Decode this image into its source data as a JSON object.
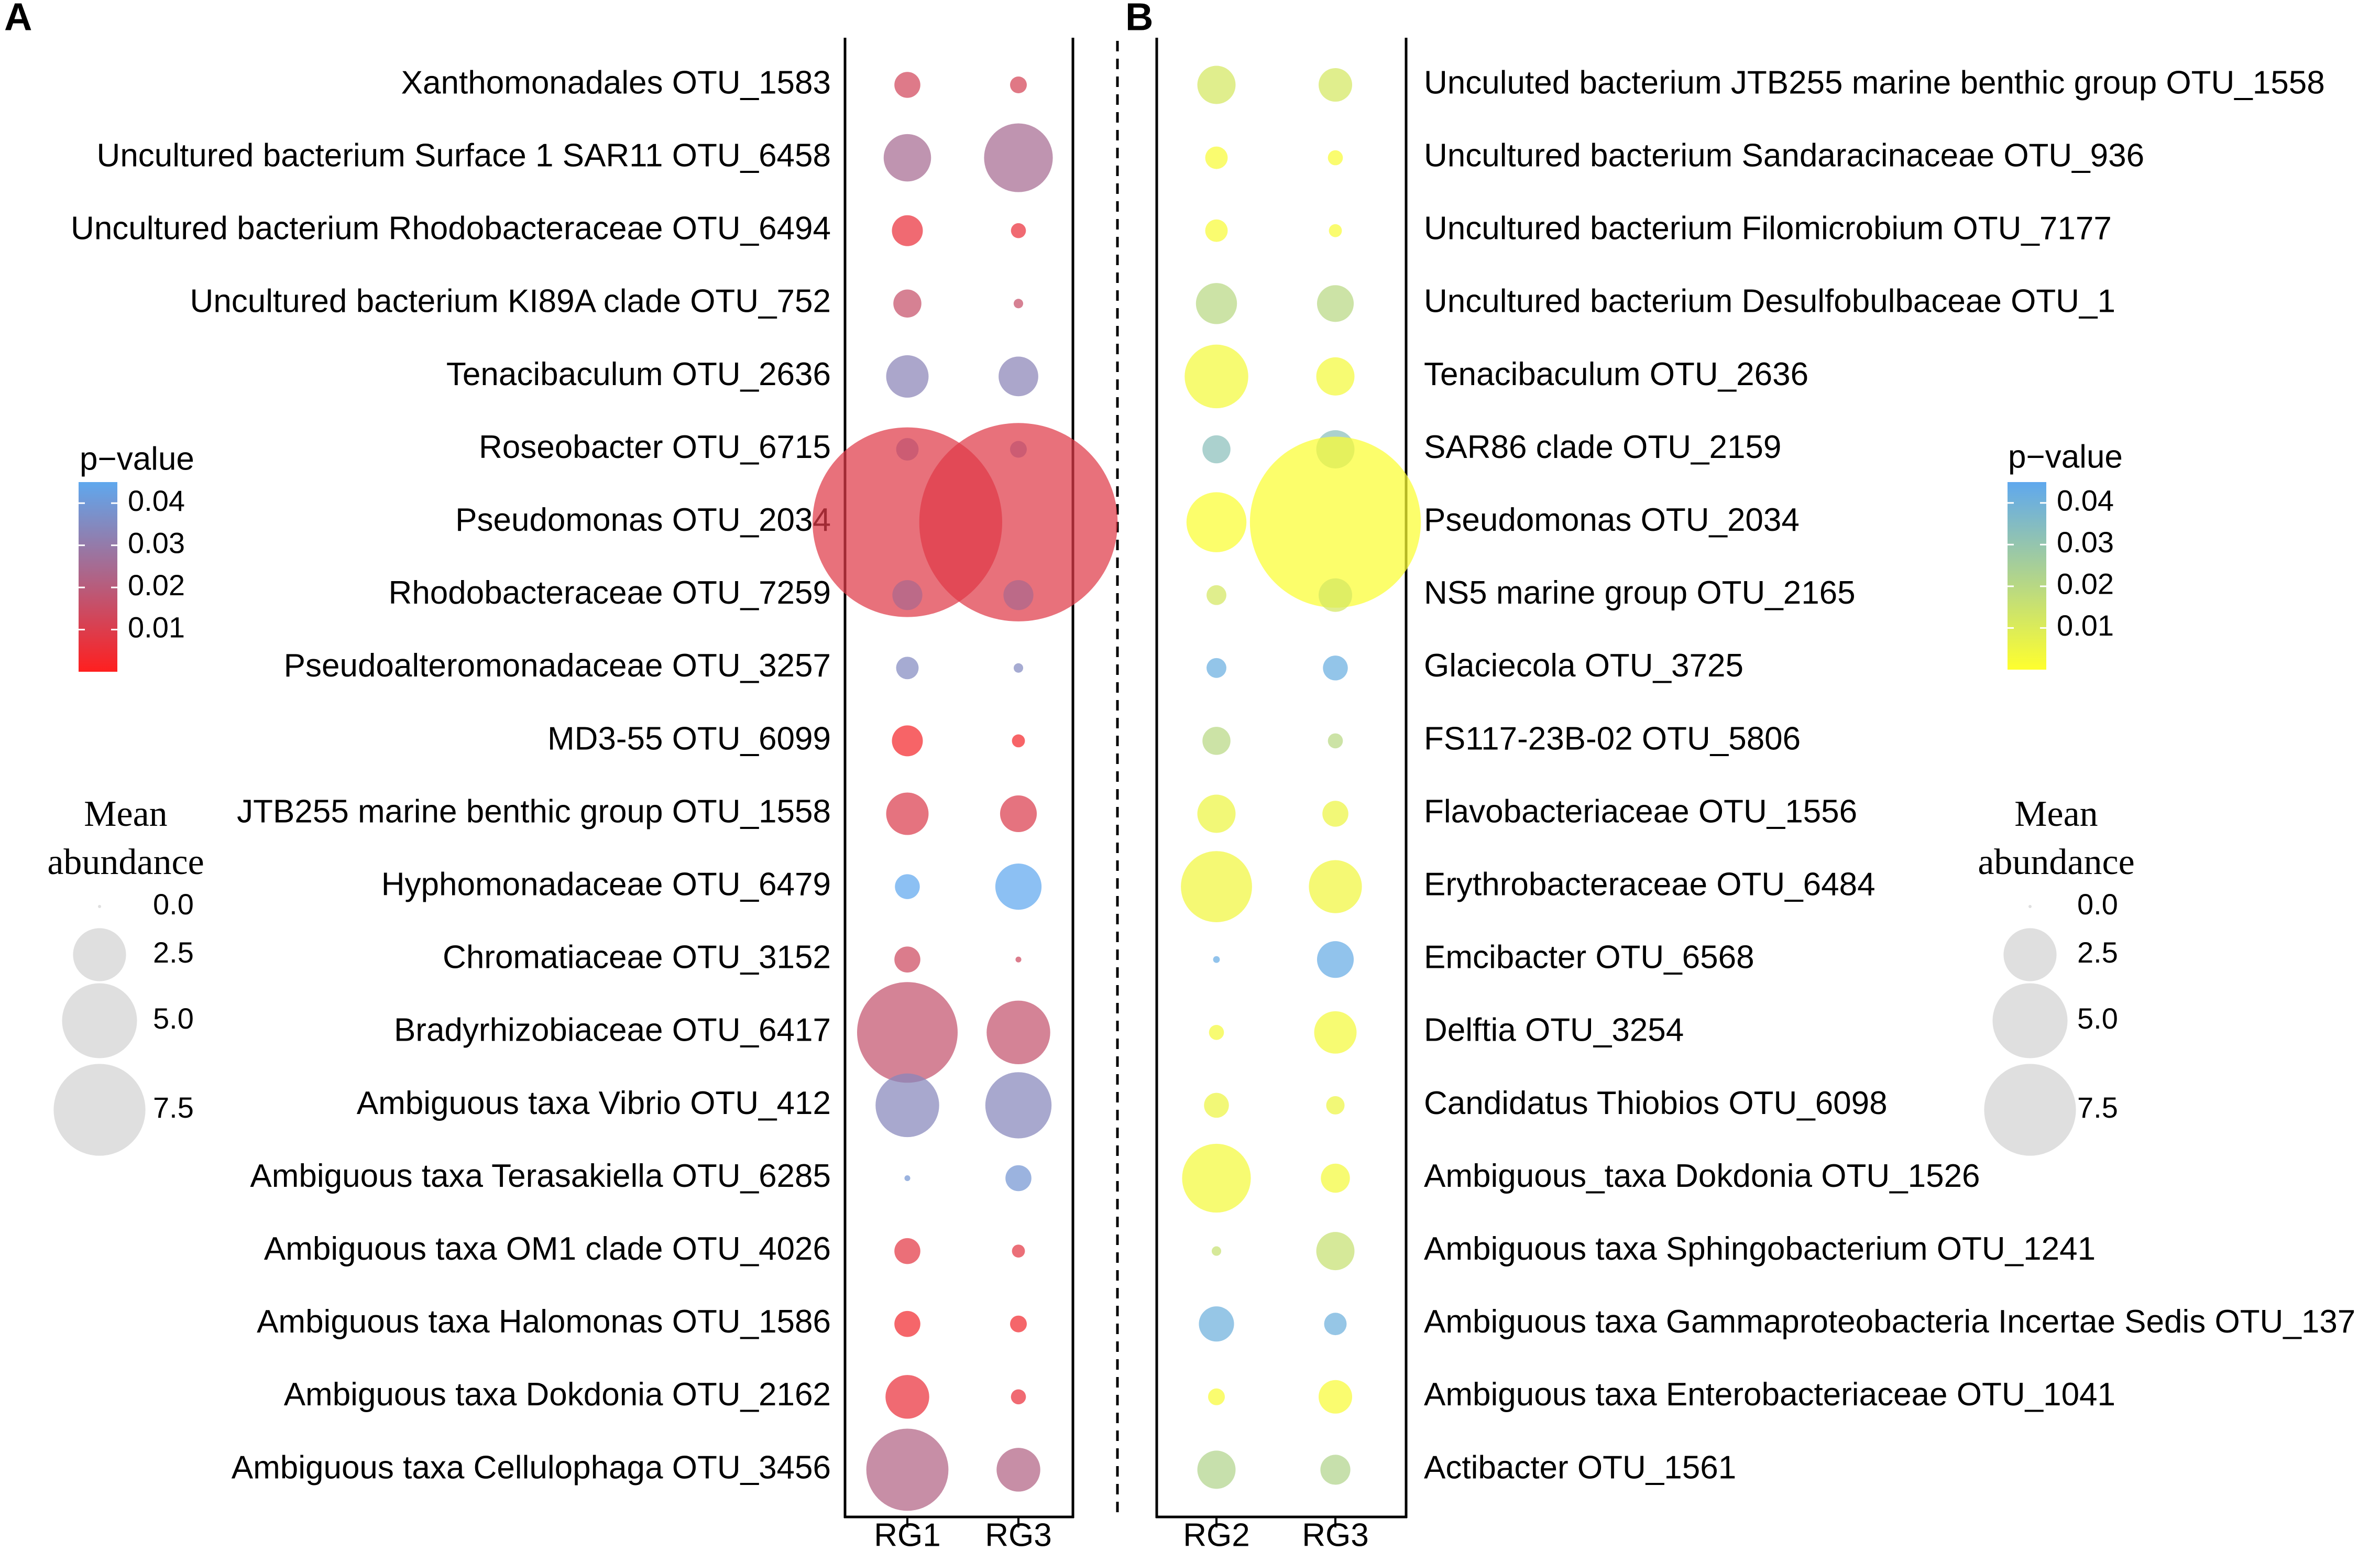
{
  "chart_data": [
    {
      "panel": "A",
      "type": "bubble",
      "columns": [
        "RG1",
        "RG3"
      ],
      "rows": [
        {
          "label": "Xanthomonadales OTU_1583",
          "cells": [
            {
              "abundance": 0.6,
              "p": 0.013
            },
            {
              "abundance": 0.25,
              "p": 0.012
            }
          ]
        },
        {
          "label": "Uncultured bacterium Surface 1 SAR11 OTU_6458",
          "cells": [
            {
              "abundance": 2.0,
              "p": 0.025
            },
            {
              "abundance": 4.2,
              "p": 0.025
            }
          ]
        },
        {
          "label": "Uncultured bacterium Rhodobacteraceae OTU_6494",
          "cells": [
            {
              "abundance": 0.85,
              "p": 0.006
            },
            {
              "abundance": 0.2,
              "p": 0.006
            }
          ]
        },
        {
          "label": "Uncultured bacterium KI89A clade OTU_752",
          "cells": [
            {
              "abundance": 0.7,
              "p": 0.016
            },
            {
              "abundance": 0.08,
              "p": 0.016
            }
          ]
        },
        {
          "label": "Tenacibaculum OTU_2636",
          "cells": [
            {
              "abundance": 1.6,
              "p": 0.033
            },
            {
              "abundance": 1.4,
              "p": 0.033
            }
          ]
        },
        {
          "label": "Roseobacter OTU_6715",
          "cells": [
            {
              "abundance": 0.45,
              "p": 0.04
            },
            {
              "abundance": 0.25,
              "p": 0.04
            }
          ]
        },
        {
          "label": "Pseudomonas OTU_2034",
          "cells": [
            {
              "abundance": 32.0,
              "p": 0.009
            },
            {
              "abundance": 35.0,
              "p": 0.009
            }
          ]
        },
        {
          "label": "Rhodobacteraceae OTU_7259",
          "cells": [
            {
              "abundance": 0.8,
              "p": 0.024
            },
            {
              "abundance": 0.8,
              "p": 0.024
            }
          ]
        },
        {
          "label": "Pseudoalteromonadaceae OTU_3257",
          "cells": [
            {
              "abundance": 0.45,
              "p": 0.035
            },
            {
              "abundance": 0.08,
              "p": 0.035
            }
          ]
        },
        {
          "label": "MD3-55 OTU_6099",
          "cells": [
            {
              "abundance": 0.85,
              "p": 0.003
            },
            {
              "abundance": 0.15,
              "p": 0.003
            }
          ]
        },
        {
          "label": "JTB255 marine benthic group OTU_1558",
          "cells": [
            {
              "abundance": 1.6,
              "p": 0.01
            },
            {
              "abundance": 1.2,
              "p": 0.01
            }
          ]
        },
        {
          "label": "Hyphomonadaceae OTU_6479",
          "cells": [
            {
              "abundance": 0.55,
              "p": 0.046
            },
            {
              "abundance": 1.9,
              "p": 0.046
            }
          ]
        },
        {
          "label": "Chromatiaceae OTU_3152",
          "cells": [
            {
              "abundance": 0.6,
              "p": 0.014
            },
            {
              "abundance": 0.03,
              "p": 0.014
            }
          ]
        },
        {
          "label": "Bradyrhizobiaceae OTU_6417",
          "cells": [
            {
              "abundance": 9.0,
              "p": 0.017
            },
            {
              "abundance": 3.6,
              "p": 0.017
            }
          ]
        },
        {
          "label": "Ambiguous taxa Vibrio OTU_412",
          "cells": [
            {
              "abundance": 3.6,
              "p": 0.034
            },
            {
              "abundance": 3.9,
              "p": 0.034
            }
          ]
        },
        {
          "label": "Ambiguous taxa Terasakiella OTU_6285",
          "cells": [
            {
              "abundance": 0.03,
              "p": 0.039
            },
            {
              "abundance": 0.6,
              "p": 0.039
            }
          ]
        },
        {
          "label": "Ambiguous taxa OM1 clade OTU_4026",
          "cells": [
            {
              "abundance": 0.6,
              "p": 0.008
            },
            {
              "abundance": 0.15,
              "p": 0.008
            }
          ]
        },
        {
          "label": "Ambiguous taxa Halomonas OTU_1586",
          "cells": [
            {
              "abundance": 0.6,
              "p": 0.004
            },
            {
              "abundance": 0.25,
              "p": 0.004
            }
          ]
        },
        {
          "label": "Ambiguous taxa Dokdonia OTU_2162",
          "cells": [
            {
              "abundance": 1.7,
              "p": 0.006
            },
            {
              "abundance": 0.2,
              "p": 0.006
            }
          ]
        },
        {
          "label": "Ambiguous taxa Cellulophaga OTU_3456",
          "cells": [
            {
              "abundance": 6.0,
              "p": 0.022
            },
            {
              "abundance": 1.7,
              "p": 0.022
            }
          ]
        }
      ],
      "legend_pvalue": {
        "title": "p−value",
        "ticks": [
          "0.04",
          "0.03",
          "0.02",
          "0.01"
        ],
        "tick_values": [
          0.04,
          0.03,
          0.02,
          0.01
        ],
        "range": [
          0.0,
          0.045
        ],
        "colors": [
          "#ff1f1f",
          "#5fa8ee"
        ]
      },
      "legend_size": {
        "title_lines": [
          "Mean",
          "abundance"
        ],
        "entries": [
          "0.0",
          "2.5",
          "5.0",
          "7.5"
        ],
        "values": [
          0.0,
          2.5,
          5.0,
          7.5
        ]
      }
    },
    {
      "panel": "B",
      "type": "bubble",
      "columns": [
        "RG2",
        "RG3"
      ],
      "rows": [
        {
          "label": "Unculuted bacterium JTB255 marine benthic group OTU_1558",
          "cells": [
            {
              "abundance": 1.3,
              "p": 0.012
            },
            {
              "abundance": 1.0,
              "p": 0.012
            }
          ]
        },
        {
          "label": "Uncultured bacterium Sandaracinaceae OTU_936",
          "cells": [
            {
              "abundance": 0.45,
              "p": 0.002
            },
            {
              "abundance": 0.2,
              "p": 0.002
            }
          ]
        },
        {
          "label": "Uncultured bacterium Filomicrobium OTU_7177",
          "cells": [
            {
              "abundance": 0.45,
              "p": 0.002
            },
            {
              "abundance": 0.15,
              "p": 0.002
            }
          ]
        },
        {
          "label": "Uncultured bacterium Desulfobulbaceae OTU_1",
          "cells": [
            {
              "abundance": 1.5,
              "p": 0.02
            },
            {
              "abundance": 1.2,
              "p": 0.02
            }
          ]
        },
        {
          "label": "Tenacibaculum OTU_2636",
          "cells": [
            {
              "abundance": 3.6,
              "p": 0.003
            },
            {
              "abundance": 1.3,
              "p": 0.003
            }
          ]
        },
        {
          "label": "SAR86 clade OTU_2159",
          "cells": [
            {
              "abundance": 0.7,
              "p": 0.033
            },
            {
              "abundance": 1.3,
              "p": 0.033
            }
          ]
        },
        {
          "label": "Pseudomonas OTU_2034",
          "cells": [
            {
              "abundance": 3.2,
              "p": 0.001
            },
            {
              "abundance": 26.0,
              "p": 0.001
            }
          ]
        },
        {
          "label": "NS5 marine group OTU_2165",
          "cells": [
            {
              "abundance": 0.35,
              "p": 0.012
            },
            {
              "abundance": 1.0,
              "p": 0.012
            }
          ]
        },
        {
          "label": "Glaciecola OTU_3725",
          "cells": [
            {
              "abundance": 0.35,
              "p": 0.042
            },
            {
              "abundance": 0.55,
              "p": 0.042
            }
          ]
        },
        {
          "label": "FS117-23B-02 OTU_5806",
          "cells": [
            {
              "abundance": 0.7,
              "p": 0.02
            },
            {
              "abundance": 0.2,
              "p": 0.02
            }
          ]
        },
        {
          "label": "Flavobacteriaceae OTU_1556",
          "cells": [
            {
              "abundance": 1.3,
              "p": 0.005
            },
            {
              "abundance": 0.6,
              "p": 0.005
            }
          ]
        },
        {
          "label": "Erythrobacteraceae OTU_6484",
          "cells": [
            {
              "abundance": 4.5,
              "p": 0.004
            },
            {
              "abundance": 2.5,
              "p": 0.004
            }
          ]
        },
        {
          "label": "Emcibacter OTU_6568",
          "cells": [
            {
              "abundance": 0.04,
              "p": 0.043
            },
            {
              "abundance": 1.2,
              "p": 0.043
            }
          ]
        },
        {
          "label": "Delftia OTU_3254",
          "cells": [
            {
              "abundance": 0.2,
              "p": 0.003
            },
            {
              "abundance": 1.6,
              "p": 0.003
            }
          ]
        },
        {
          "label": "Candidatus Thiobios OTU_6098",
          "cells": [
            {
              "abundance": 0.55,
              "p": 0.005
            },
            {
              "abundance": 0.3,
              "p": 0.005
            }
          ]
        },
        {
          "label": "Ambiguous_taxa Dokdonia OTU_1526",
          "cells": [
            {
              "abundance": 4.2,
              "p": 0.003
            },
            {
              "abundance": 0.75,
              "p": 0.003
            }
          ]
        },
        {
          "label": "Ambiguous taxa Sphingobacterium OTU_1241",
          "cells": [
            {
              "abundance": 0.08,
              "p": 0.016
            },
            {
              "abundance": 1.3,
              "p": 0.016
            }
          ]
        },
        {
          "label": "Ambiguous taxa Gammaproteobacteria Incertae Sedis OTU_137",
          "cells": [
            {
              "abundance": 1.1,
              "p": 0.041
            },
            {
              "abundance": 0.45,
              "p": 0.041
            }
          ]
        },
        {
          "label": "Ambiguous taxa Enterobacteriaceae OTU_1041",
          "cells": [
            {
              "abundance": 0.25,
              "p": 0.002
            },
            {
              "abundance": 1.0,
              "p": 0.002
            }
          ]
        },
        {
          "label": "Actibacter OTU_1561",
          "cells": [
            {
              "abundance": 1.3,
              "p": 0.022
            },
            {
              "abundance": 0.8,
              "p": 0.022
            }
          ]
        }
      ],
      "legend_pvalue": {
        "title": "p−value",
        "ticks": [
          "0.04",
          "0.03",
          "0.02",
          "0.01"
        ],
        "tick_values": [
          0.04,
          0.03,
          0.02,
          0.01
        ],
        "range": [
          0.0,
          0.045
        ],
        "colors": [
          "#ffff2e",
          "#5fa8ee"
        ]
      },
      "legend_size": {
        "title_lines": [
          "Mean",
          "abundance"
        ],
        "entries": [
          "0.0",
          "2.5",
          "5.0",
          "7.5"
        ],
        "values": [
          0.0,
          2.5,
          5.0,
          7.5
        ]
      }
    }
  ]
}
